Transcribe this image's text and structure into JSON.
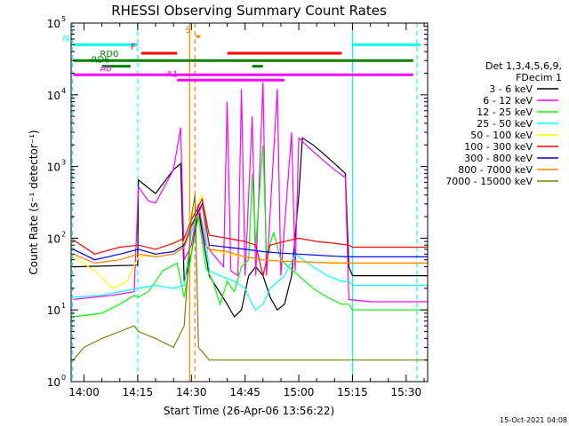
{
  "chart_data": {
    "type": "line",
    "title": "RHESSI Observing Summary Count Rates",
    "xlabel": "Start Time (26-Apr-06 13:56:22)",
    "ylabel": "Count Rate (s⁻¹ detector⁻¹)",
    "yscale": "log",
    "ylim": [
      1,
      100000
    ],
    "xlim_minutes": [
      -3.6,
      96
    ],
    "x_ticks": [
      {
        "min": 0,
        "label": "14:00"
      },
      {
        "min": 15,
        "label": "14:15"
      },
      {
        "min": 30,
        "label": "14:30"
      },
      {
        "min": 45,
        "label": "14:45"
      },
      {
        "min": 60,
        "label": "15:00"
      },
      {
        "min": 75,
        "label": "15:15"
      },
      {
        "min": 90,
        "label": "15:30"
      }
    ],
    "y_ticks": [
      {
        "exp": 0,
        "label": "10",
        "sup": "0"
      },
      {
        "exp": 1,
        "label": "10",
        "sup": "1"
      },
      {
        "exp": 2,
        "label": "10",
        "sup": "2"
      },
      {
        "exp": 3,
        "label": "10",
        "sup": "3"
      },
      {
        "exp": 4,
        "label": "10",
        "sup": "4"
      },
      {
        "exp": 5,
        "label": "10",
        "sup": "5"
      }
    ],
    "legend_header": [
      "Det 1,3,4,5,6,9,",
      "FDecim 1"
    ],
    "legend_position": "right",
    "series": [
      {
        "name": "3 - 6 keV",
        "color": "#000000",
        "points": [
          [
            -3,
            40
          ],
          [
            15,
            42
          ],
          [
            15.2,
            650
          ],
          [
            18,
            500
          ],
          [
            20,
            420
          ],
          [
            25,
            900
          ],
          [
            27,
            1100
          ],
          [
            28,
            25
          ],
          [
            30,
            60
          ],
          [
            32,
            250
          ],
          [
            34,
            60
          ],
          [
            35,
            30
          ],
          [
            40,
            12
          ],
          [
            42,
            8
          ],
          [
            44,
            10
          ],
          [
            46,
            30
          ],
          [
            48,
            40
          ],
          [
            50,
            30
          ],
          [
            52,
            15
          ],
          [
            54,
            10
          ],
          [
            56,
            12
          ],
          [
            58,
            30
          ],
          [
            60,
            400
          ],
          [
            61,
            2500
          ],
          [
            64,
            2000
          ],
          [
            67,
            1500
          ],
          [
            70,
            1100
          ],
          [
            73,
            800
          ],
          [
            74,
            40
          ],
          [
            75,
            30
          ],
          [
            96,
            30
          ]
        ]
      },
      {
        "name": "6 - 12 keV",
        "color": "#ff00ff",
        "points": [
          [
            -3,
            14
          ],
          [
            8,
            16
          ],
          [
            14,
            18
          ],
          [
            15.2,
            520
          ],
          [
            18,
            330
          ],
          [
            20,
            310
          ],
          [
            25,
            900
          ],
          [
            27,
            3500
          ],
          [
            28,
            50
          ],
          [
            30,
            80
          ],
          [
            32,
            300
          ],
          [
            34,
            80
          ],
          [
            36,
            60
          ],
          [
            39,
            40
          ],
          [
            40,
            8000
          ],
          [
            41,
            35
          ],
          [
            43,
            30
          ],
          [
            44,
            12000
          ],
          [
            45,
            30
          ],
          [
            47,
            5000
          ],
          [
            48,
            30
          ],
          [
            50,
            15000
          ],
          [
            51,
            30
          ],
          [
            54,
            12000
          ],
          [
            55,
            30
          ],
          [
            58,
            3000
          ],
          [
            59,
            35
          ],
          [
            60,
            2500
          ],
          [
            63,
            1800
          ],
          [
            67,
            1200
          ],
          [
            70,
            900
          ],
          [
            73,
            700
          ],
          [
            74,
            14
          ],
          [
            80,
            13
          ],
          [
            96,
            13
          ]
        ]
      },
      {
        "name": "12 - 25 keV",
        "color": "#00ff00",
        "points": [
          [
            -3,
            8
          ],
          [
            5,
            9
          ],
          [
            10,
            12
          ],
          [
            14,
            16
          ],
          [
            15.2,
            15
          ],
          [
            18,
            18
          ],
          [
            22,
            35
          ],
          [
            26,
            45
          ],
          [
            28,
            15
          ],
          [
            30,
            60
          ],
          [
            32,
            200
          ],
          [
            34,
            40
          ],
          [
            36,
            25
          ],
          [
            38,
            12
          ],
          [
            40,
            25
          ],
          [
            42,
            18
          ],
          [
            44,
            40
          ],
          [
            46,
            50
          ],
          [
            47,
            800
          ],
          [
            48,
            80
          ],
          [
            50,
            2000
          ],
          [
            51,
            60
          ],
          [
            53,
            120
          ],
          [
            55,
            50
          ],
          [
            57,
            40
          ],
          [
            60,
            30
          ],
          [
            64,
            20
          ],
          [
            68,
            15
          ],
          [
            72,
            12
          ],
          [
            74,
            12
          ],
          [
            75,
            10
          ],
          [
            96,
            10
          ]
        ]
      },
      {
        "name": "25 - 50 keV",
        "color": "#00ffff",
        "points": [
          [
            -3,
            15
          ],
          [
            5,
            16
          ],
          [
            10,
            18
          ],
          [
            15.2,
            20
          ],
          [
            20,
            22
          ],
          [
            25,
            20
          ],
          [
            28,
            22
          ],
          [
            30,
            120
          ],
          [
            33,
            300
          ],
          [
            35,
            35
          ],
          [
            38,
            30
          ],
          [
            42,
            25
          ],
          [
            45,
            20
          ],
          [
            47,
            12
          ],
          [
            48,
            10
          ],
          [
            50,
            12
          ],
          [
            52,
            20
          ],
          [
            56,
            30
          ],
          [
            59,
            60
          ],
          [
            60,
            55
          ],
          [
            64,
            40
          ],
          [
            68,
            30
          ],
          [
            72,
            25
          ],
          [
            74,
            25
          ],
          [
            75,
            22
          ],
          [
            96,
            22
          ]
        ]
      },
      {
        "name": "50 - 100 keV",
        "color": "#ffff00",
        "points": [
          [
            -3,
            55
          ],
          [
            3,
            35
          ],
          [
            8,
            20
          ],
          [
            12,
            25
          ],
          [
            15.2,
            55
          ],
          [
            20,
            60
          ],
          [
            25,
            65
          ],
          [
            28,
            90
          ],
          [
            30,
            200
          ],
          [
            33,
            400
          ],
          [
            35,
            70
          ],
          [
            40,
            60
          ],
          [
            45,
            55
          ],
          [
            50,
            50
          ],
          [
            55,
            48
          ],
          [
            60,
            47
          ],
          [
            65,
            46
          ],
          [
            70,
            46
          ],
          [
            75,
            45
          ],
          [
            96,
            45
          ]
        ]
      },
      {
        "name": "100 - 300 keV",
        "color": "#ff0000",
        "points": [
          [
            -3,
            95
          ],
          [
            3,
            60
          ],
          [
            10,
            75
          ],
          [
            15.2,
            80
          ],
          [
            20,
            70
          ],
          [
            25,
            85
          ],
          [
            28,
            100
          ],
          [
            30,
            180
          ],
          [
            33,
            350
          ],
          [
            35,
            110
          ],
          [
            40,
            100
          ],
          [
            45,
            90
          ],
          [
            48,
            80
          ],
          [
            50,
            30
          ],
          [
            52,
            80
          ],
          [
            56,
            90
          ],
          [
            60,
            100
          ],
          [
            65,
            90
          ],
          [
            70,
            85
          ],
          [
            74,
            80
          ],
          [
            75,
            75
          ],
          [
            96,
            75
          ]
        ]
      },
      {
        "name": "300 - 800 keV",
        "color": "#0000ff",
        "points": [
          [
            -3,
            70
          ],
          [
            3,
            50
          ],
          [
            10,
            60
          ],
          [
            15.2,
            70
          ],
          [
            20,
            60
          ],
          [
            25,
            65
          ],
          [
            28,
            80
          ],
          [
            30,
            150
          ],
          [
            33,
            300
          ],
          [
            35,
            80
          ],
          [
            40,
            75
          ],
          [
            45,
            70
          ],
          [
            50,
            65
          ],
          [
            55,
            62
          ],
          [
            60,
            60
          ],
          [
            65,
            58
          ],
          [
            70,
            56
          ],
          [
            74,
            55
          ],
          [
            75,
            55
          ],
          [
            96,
            55
          ]
        ]
      },
      {
        "name": "800 - 7000 keV",
        "color": "#ff8000",
        "points": [
          [
            -3,
            60
          ],
          [
            3,
            45
          ],
          [
            10,
            50
          ],
          [
            15.2,
            60
          ],
          [
            20,
            55
          ],
          [
            25,
            60
          ],
          [
            28,
            75
          ],
          [
            30,
            140
          ],
          [
            33,
            280
          ],
          [
            35,
            70
          ],
          [
            40,
            65
          ],
          [
            45,
            55
          ],
          [
            50,
            50
          ],
          [
            55,
            48
          ],
          [
            60,
            47
          ],
          [
            65,
            46
          ],
          [
            70,
            45
          ],
          [
            75,
            45
          ],
          [
            96,
            45
          ]
        ]
      },
      {
        "name": "7000 - 15000 keV",
        "color": "#808000",
        "points": [
          [
            -3,
            2
          ],
          [
            0,
            3
          ],
          [
            5,
            4
          ],
          [
            10,
            5
          ],
          [
            14,
            6
          ],
          [
            15.2,
            5
          ],
          [
            20,
            4
          ],
          [
            25,
            3
          ],
          [
            28,
            6
          ],
          [
            30,
            200
          ],
          [
            31,
            400
          ],
          [
            32,
            3
          ],
          [
            35,
            2
          ],
          [
            40,
            2
          ],
          [
            45,
            2
          ],
          [
            50,
            2
          ],
          [
            55,
            2
          ],
          [
            60,
            2
          ],
          [
            65,
            2
          ],
          [
            70,
            2
          ],
          [
            74,
            2
          ],
          [
            75,
            2
          ],
          [
            96,
            2
          ]
        ]
      }
    ],
    "flag_bars": [
      {
        "label": "N",
        "color": "#00ffff",
        "y": 50000,
        "segments": [
          [
            -3,
            15
          ],
          [
            75,
            94
          ]
        ]
      },
      {
        "label": "F",
        "color": "#ff0000",
        "y": 38000,
        "segments": [
          [
            16,
            26
          ],
          [
            40,
            72
          ]
        ]
      },
      {
        "label": "S",
        "color": "#ff8000",
        "y": 65000,
        "segments": [
          [
            31.3,
            32.5
          ]
        ]
      },
      {
        "label": "RD0",
        "color": "#008000",
        "y": 30000,
        "segments": [
          [
            -3,
            92
          ]
        ]
      },
      {
        "label": "RD6",
        "color": "#008000",
        "y": 25000,
        "segments": [
          [
            5,
            13
          ],
          [
            47,
            50
          ]
        ]
      },
      {
        "label": "A0",
        "color": "#ff00ff",
        "y": 19000,
        "segments": [
          [
            -3,
            92
          ]
        ]
      },
      {
        "label": "A1",
        "color": "#ff00ff",
        "y": 16000,
        "segments": [
          [
            26,
            56
          ]
        ]
      }
    ],
    "vertical_lines": [
      {
        "min": -3.2,
        "color": "#00ffff",
        "style": "dashed"
      },
      {
        "min": 15,
        "color": "#00ffff",
        "style": "dashed"
      },
      {
        "min": 29.5,
        "color": "#ff8000",
        "style": "solid"
      },
      {
        "min": 31,
        "color": "#ff8000",
        "style": "dashed"
      },
      {
        "min": 75,
        "color": "#00ffff",
        "style": "solid"
      },
      {
        "min": 93,
        "color": "#00ffff",
        "style": "dashed"
      }
    ],
    "timestamp": "15-Oct-2021 04:08"
  }
}
